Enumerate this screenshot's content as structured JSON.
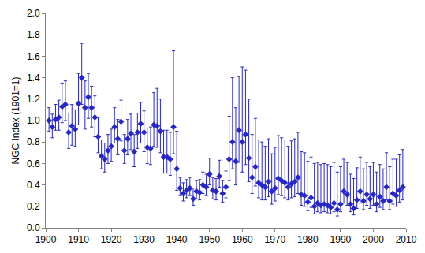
{
  "chart_data": {
    "type": "scatter",
    "y_label": "NGC Index (1901=1)",
    "color": "#2727c8",
    "marker": "diamond",
    "grid": false,
    "x": [
      1901,
      1902,
      1903,
      1904,
      1905,
      1906,
      1907,
      1908,
      1909,
      1910,
      1911,
      1912,
      1913,
      1914,
      1915,
      1916,
      1917,
      1918,
      1919,
      1920,
      1921,
      1922,
      1923,
      1924,
      1925,
      1926,
      1927,
      1928,
      1929,
      1930,
      1931,
      1932,
      1933,
      1934,
      1935,
      1936,
      1937,
      1938,
      1939,
      1940,
      1941,
      1942,
      1943,
      1944,
      1945,
      1946,
      1947,
      1948,
      1949,
      1950,
      1951,
      1952,
      1953,
      1954,
      1955,
      1956,
      1957,
      1958,
      1959,
      1960,
      1961,
      1962,
      1963,
      1964,
      1965,
      1966,
      1967,
      1968,
      1969,
      1970,
      1971,
      1972,
      1973,
      1974,
      1975,
      1976,
      1977,
      1978,
      1979,
      1980,
      1981,
      1982,
      1983,
      1984,
      1985,
      1986,
      1987,
      1988,
      1989,
      1990,
      1991,
      1992,
      1993,
      1994,
      1995,
      1996,
      1997,
      1998,
      1999,
      2000,
      2001,
      2002,
      2003,
      2004,
      2005,
      2006,
      2007,
      2008,
      2009
    ],
    "values": [
      1.0,
      0.94,
      1.01,
      1.03,
      1.13,
      1.15,
      0.89,
      0.95,
      0.92,
      1.16,
      1.4,
      1.12,
      1.22,
      1.12,
      1.03,
      0.85,
      0.67,
      0.64,
      0.72,
      0.76,
      0.94,
      0.83,
      0.99,
      0.72,
      0.83,
      0.88,
      0.71,
      0.89,
      0.97,
      0.89,
      0.75,
      0.74,
      0.96,
      0.95,
      0.9,
      0.66,
      0.66,
      0.64,
      0.94,
      0.55,
      0.37,
      0.32,
      0.35,
      0.37,
      0.27,
      0.34,
      0.33,
      0.4,
      0.38,
      0.5,
      0.35,
      0.34,
      0.48,
      0.32,
      0.38,
      0.64,
      0.8,
      0.62,
      0.91,
      0.8,
      0.87,
      0.65,
      0.47,
      0.57,
      0.42,
      0.4,
      0.38,
      0.43,
      0.34,
      0.37,
      0.46,
      0.44,
      0.42,
      0.38,
      0.41,
      0.43,
      0.47,
      0.31,
      0.3,
      0.24,
      0.28,
      0.2,
      0.23,
      0.21,
      0.22,
      0.21,
      0.19,
      0.23,
      0.17,
      0.22,
      0.34,
      0.31,
      0.22,
      0.18,
      0.26,
      0.34,
      0.25,
      0.31,
      0.27,
      0.31,
      0.22,
      0.29,
      0.25,
      0.38,
      0.25,
      0.32,
      0.3,
      0.35,
      0.38
    ],
    "error_plus": [
      0.12,
      0.12,
      0.14,
      0.16,
      0.22,
      0.22,
      0.18,
      0.2,
      0.18,
      0.28,
      0.32,
      0.25,
      0.22,
      0.2,
      0.2,
      0.18,
      0.15,
      0.15,
      0.15,
      0.16,
      0.18,
      0.18,
      0.2,
      0.15,
      0.18,
      0.18,
      0.16,
      0.18,
      0.2,
      0.2,
      0.18,
      0.2,
      0.3,
      0.35,
      0.3,
      0.25,
      0.25,
      0.25,
      0.71,
      0.35,
      0.1,
      0.1,
      0.1,
      0.1,
      0.1,
      0.1,
      0.12,
      0.12,
      0.12,
      0.15,
      0.12,
      0.12,
      0.15,
      0.12,
      0.15,
      0.4,
      0.6,
      0.5,
      0.5,
      0.7,
      0.6,
      0.55,
      0.4,
      0.45,
      0.4,
      0.4,
      0.38,
      0.4,
      0.35,
      0.38,
      0.4,
      0.4,
      0.4,
      0.38,
      0.4,
      0.4,
      0.42,
      0.4,
      0.4,
      0.38,
      0.38,
      0.4,
      0.38,
      0.38,
      0.38,
      0.38,
      0.38,
      0.38,
      0.35,
      0.35,
      0.3,
      0.3,
      0.28,
      0.28,
      0.3,
      0.32,
      0.3,
      0.3,
      0.3,
      0.3,
      0.3,
      0.3,
      0.3,
      0.32,
      0.32,
      0.32,
      0.34,
      0.33,
      0.35
    ],
    "error_minus": [
      0.1,
      0.1,
      0.1,
      0.12,
      0.15,
      0.15,
      0.15,
      0.18,
      0.16,
      0.2,
      0.25,
      0.2,
      0.2,
      0.18,
      0.18,
      0.15,
      0.12,
      0.12,
      0.12,
      0.14,
      0.15,
      0.15,
      0.18,
      0.12,
      0.15,
      0.15,
      0.14,
      0.15,
      0.18,
      0.18,
      0.15,
      0.15,
      0.2,
      0.2,
      0.2,
      0.15,
      0.15,
      0.15,
      0.25,
      0.2,
      0.07,
      0.07,
      0.07,
      0.07,
      0.06,
      0.07,
      0.07,
      0.08,
      0.08,
      0.1,
      0.08,
      0.08,
      0.1,
      0.08,
      0.1,
      0.2,
      0.25,
      0.22,
      0.3,
      0.28,
      0.28,
      0.22,
      0.15,
      0.18,
      0.14,
      0.14,
      0.12,
      0.14,
      0.12,
      0.12,
      0.15,
      0.14,
      0.14,
      0.12,
      0.13,
      0.14,
      0.15,
      0.1,
      0.1,
      0.08,
      0.09,
      0.07,
      0.08,
      0.07,
      0.07,
      0.07,
      0.06,
      0.08,
      0.06,
      0.07,
      0.11,
      0.1,
      0.07,
      0.06,
      0.08,
      0.11,
      0.08,
      0.1,
      0.09,
      0.1,
      0.07,
      0.1,
      0.08,
      0.12,
      0.08,
      0.1,
      0.1,
      0.11,
      0.12
    ],
    "xlim": [
      1900,
      2010
    ],
    "xticks": [
      1900,
      1910,
      1920,
      1930,
      1940,
      1950,
      1960,
      1970,
      1980,
      1990,
      2000,
      2010
    ],
    "ylim": [
      0,
      2
    ],
    "yticks": [
      {
        "value": 0,
        "label": "0.0"
      },
      0.2,
      0.4,
      0.6,
      0.8,
      {
        "value": 1,
        "label": "1.0"
      },
      1.2,
      1.4,
      1.6,
      1.8,
      {
        "value": 2,
        "label": "2.0"
      }
    ]
  }
}
